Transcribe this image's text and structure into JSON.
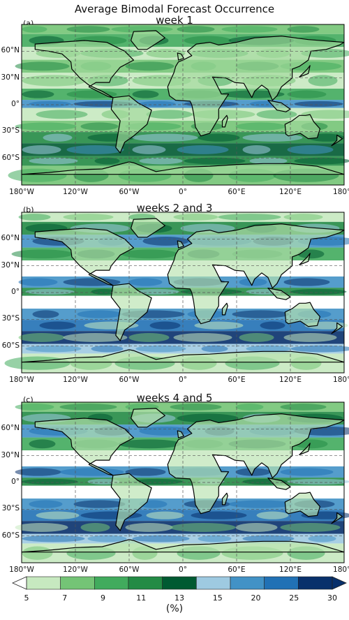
{
  "figure": {
    "title": "Average Bimodal Forecast Occurrence",
    "unit_label": "(%)"
  },
  "panels": [
    {
      "label": "(a)",
      "subtitle": "week 1"
    },
    {
      "label": "(b)",
      "subtitle": "weeks 2 and 3"
    },
    {
      "label": "(c)",
      "subtitle": "weeks 4 and 5"
    }
  ],
  "axes": {
    "lon_ticks": [
      "180°W",
      "120°W",
      "60°W",
      "0°",
      "60°E",
      "120°E",
      "180°E"
    ],
    "lat_ticks": [
      "60°N",
      "30°N",
      "0°",
      "30°S",
      "60°S"
    ]
  },
  "colorbar": {
    "ticks": [
      "5",
      "7",
      "9",
      "11",
      "13",
      "15",
      "20",
      "25",
      "30"
    ],
    "colors": [
      "#c7e9c0",
      "#74c476",
      "#41ab5d",
      "#238b45",
      "#005a32",
      "#9ecae1",
      "#4292c6",
      "#2171b5",
      "#08306b"
    ],
    "extend": "both"
  }
}
